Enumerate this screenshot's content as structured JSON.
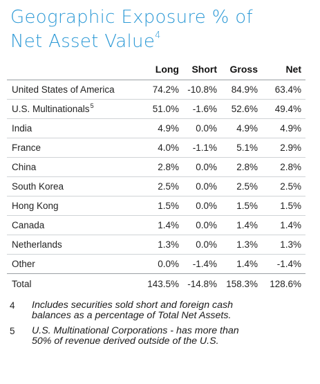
{
  "title": {
    "line1": "Geographic Exposure % of",
    "line2": "Net Asset Value",
    "footnote_ref": "4"
  },
  "table": {
    "columns": [
      "Long",
      "Short",
      "Gross",
      "Net"
    ],
    "rows": [
      {
        "label": "United States of America",
        "sup": "",
        "long": "74.2%",
        "short": "-10.8%",
        "gross": "84.9%",
        "net": "63.4%"
      },
      {
        "label": "U.S. Multinationals",
        "sup": "5",
        "long": "51.0%",
        "short": "-1.6%",
        "gross": "52.6%",
        "net": "49.4%"
      },
      {
        "label": "India",
        "sup": "",
        "long": "4.9%",
        "short": "0.0%",
        "gross": "4.9%",
        "net": "4.9%"
      },
      {
        "label": "France",
        "sup": "",
        "long": "4.0%",
        "short": "-1.1%",
        "gross": "5.1%",
        "net": "2.9%"
      },
      {
        "label": "China",
        "sup": "",
        "long": "2.8%",
        "short": "0.0%",
        "gross": "2.8%",
        "net": "2.8%"
      },
      {
        "label": "South Korea",
        "sup": "",
        "long": "2.5%",
        "short": "0.0%",
        "gross": "2.5%",
        "net": "2.5%"
      },
      {
        "label": "Hong Kong",
        "sup": "",
        "long": "1.5%",
        "short": "0.0%",
        "gross": "1.5%",
        "net": "1.5%"
      },
      {
        "label": "Canada",
        "sup": "",
        "long": "1.4%",
        "short": "0.0%",
        "gross": "1.4%",
        "net": "1.4%"
      },
      {
        "label": "Netherlands",
        "sup": "",
        "long": "1.3%",
        "short": "0.0%",
        "gross": "1.3%",
        "net": "1.3%"
      },
      {
        "label": "Other",
        "sup": "",
        "long": "0.0%",
        "short": "-1.4%",
        "gross": "1.4%",
        "net": "-1.4%"
      }
    ],
    "total": {
      "label": "Total",
      "long": "143.5%",
      "short": "-14.8%",
      "gross": "158.3%",
      "net": "128.6%"
    }
  },
  "footnotes": [
    {
      "num": "4",
      "text": "Includes securities sold short and foreign cash balances as a percentage of Total Net Assets."
    },
    {
      "num": "5",
      "text": "U.S. Multinational Corporations - has more than 50% of revenue derived outside of the U.S."
    }
  ],
  "colors": {
    "title": "#2e9ad6",
    "rule": "#cfd3d6"
  }
}
